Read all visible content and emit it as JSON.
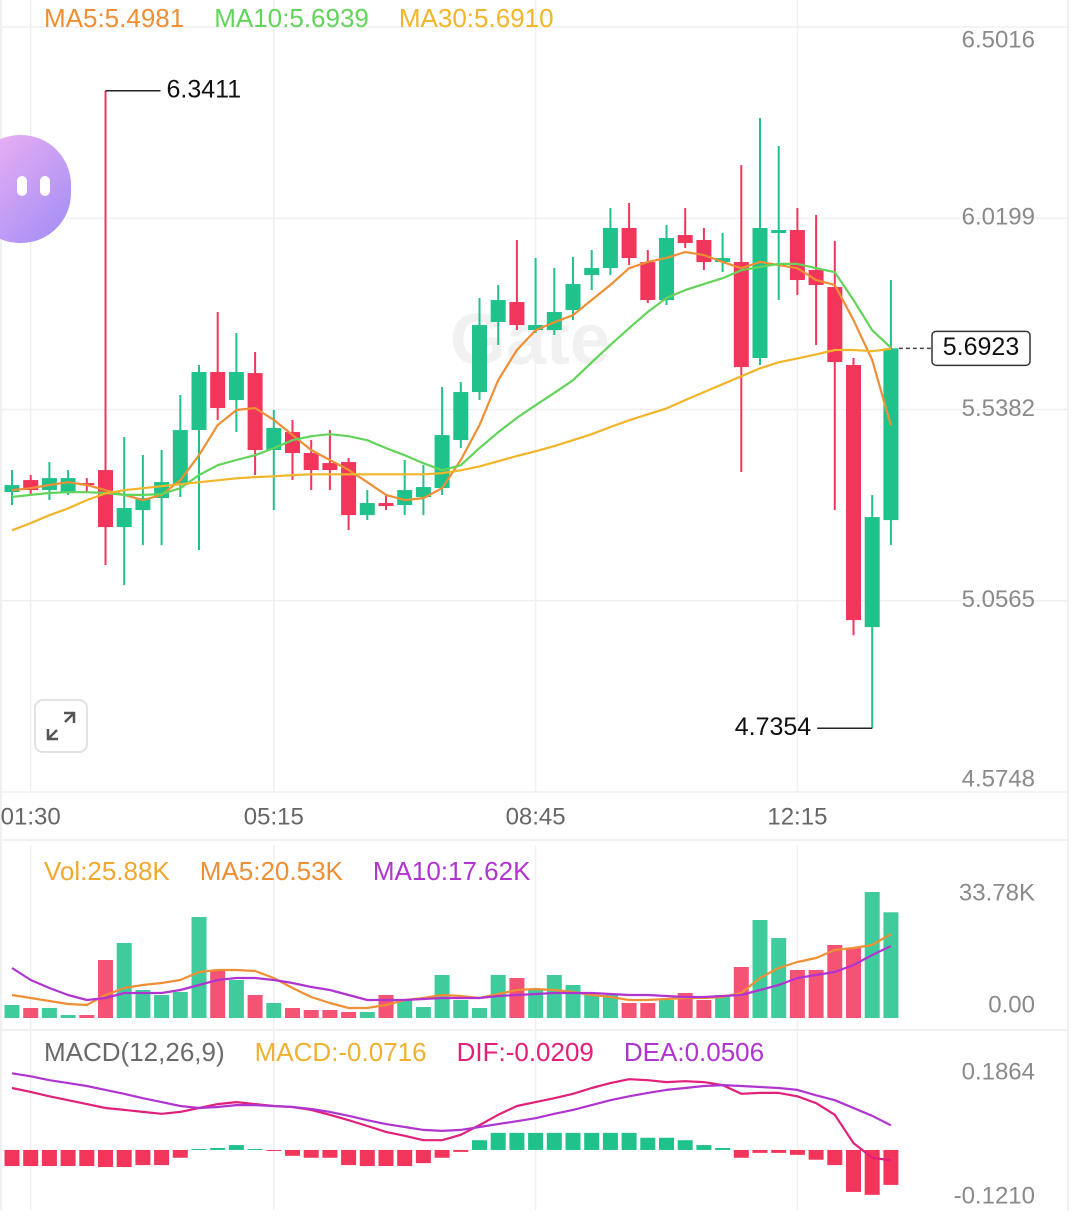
{
  "chart_data": [
    {
      "type": "candlestick",
      "watermark": "Gate",
      "categories": [
        null,
        "01:30",
        null,
        null,
        null,
        null,
        null,
        null,
        null,
        null,
        null,
        null,
        null,
        null,
        "05:15",
        null,
        null,
        null,
        null,
        null,
        null,
        null,
        null,
        null,
        null,
        null,
        null,
        null,
        "08:45",
        null,
        null,
        null,
        null,
        null,
        null,
        null,
        null,
        null,
        null,
        null,
        null,
        null,
        "12:15",
        null,
        null,
        null,
        null,
        null
      ],
      "open": [
        5.3303,
        5.3605,
        5.3353,
        5.3303,
        5.3529,
        5.3857,
        5.2421,
        5.2849,
        5.3152,
        5.3479,
        5.4864,
        5.6326,
        5.562,
        5.63,
        5.4361,
        5.4814,
        5.4285,
        5.4033,
        5.4058,
        5.2723,
        5.3026,
        5.2975,
        5.3177,
        5.3403,
        5.4613,
        5.5822,
        5.7585,
        5.8089,
        5.7383,
        5.7383,
        5.7887,
        5.8769,
        5.8945,
        5.9953,
        5.9096,
        5.8139,
        5.9776,
        5.9651,
        5.9096,
        5.9096,
        5.6678,
        5.9827,
        5.9902,
        5.8895,
        5.8466,
        5.6502,
        4.9902,
        5.2597
      ],
      "high": [
        5.3857,
        5.3731,
        5.4058,
        5.3857,
        5.3655,
        6.3411,
        5.4688,
        5.4235,
        5.4361,
        5.5746,
        5.6502,
        5.7837,
        5.7308,
        5.6829,
        5.5368,
        5.5116,
        5.4613,
        5.4864,
        5.4159,
        5.3353,
        5.3227,
        5.4109,
        5.3983,
        5.5948,
        5.6074,
        5.819,
        5.8517,
        5.9651,
        5.9197,
        5.8945,
        5.9222,
        5.9399,
        6.0456,
        6.0583,
        5.9399,
        6.0028,
        6.0456,
        5.9953,
        5.9827,
        6.154,
        6.2724,
        6.2018,
        6.0456,
        6.028,
        5.9625,
        5.6678,
        5.3227,
        5.8643
      ],
      "low": [
        5.2975,
        5.3227,
        5.3101,
        5.3227,
        5.3303,
        5.1464,
        5.096,
        5.1967,
        5.1967,
        5.3177,
        5.1842,
        5.5116,
        5.4814,
        5.3731,
        5.2849,
        5.3605,
        5.3353,
        5.3353,
        5.2345,
        5.2597,
        5.2849,
        5.2723,
        5.2723,
        5.3227,
        5.4411,
        5.562,
        5.7006,
        5.7383,
        5.7308,
        5.7257,
        5.7635,
        5.8391,
        5.8769,
        5.9021,
        5.8064,
        5.8013,
        5.9449,
        5.8895,
        5.8844,
        5.3807,
        5.6502,
        5.8139,
        5.8265,
        5.7006,
        5.2849,
        4.97,
        4.7354,
        5.1967
      ],
      "close": [
        5.3479,
        5.3353,
        5.3655,
        5.3655,
        5.3479,
        5.2421,
        5.29,
        5.3152,
        5.3555,
        5.4864,
        5.6326,
        5.5419,
        5.6326,
        5.4361,
        5.4915,
        5.4285,
        5.3857,
        5.3857,
        5.2723,
        5.3026,
        5.295,
        5.3353,
        5.3429,
        5.4738,
        5.5822,
        5.7509,
        5.8139,
        5.7509,
        5.7509,
        5.7837,
        5.8542,
        5.8945,
        5.9953,
        5.9197,
        5.8139,
        5.9701,
        5.9575,
        5.9096,
        5.9197,
        5.6451,
        5.9953,
        5.9902,
        5.8643,
        5.8517,
        5.6577,
        5.0078,
        5.2673,
        5.6923
      ],
      "up_color": "#1fc28b",
      "down_color": "#f2355b",
      "ylim": [
        4.5748,
        6.5016
      ],
      "yticks": [
        6.5016,
        6.0199,
        5.5382,
        5.0565,
        4.5748
      ],
      "grid": true,
      "series": [
        {
          "name": "MA5:5.4981",
          "color": "#ef8f35",
          "values": [
            5.335,
            5.34,
            5.348,
            5.355,
            5.348,
            5.335,
            5.323,
            5.31,
            5.323,
            5.36,
            5.423,
            5.499,
            5.537,
            5.542,
            5.512,
            5.474,
            5.436,
            5.411,
            5.386,
            5.355,
            5.323,
            5.31,
            5.315,
            5.34,
            5.411,
            5.499,
            5.612,
            5.688,
            5.738,
            5.758,
            5.776,
            5.814,
            5.852,
            5.894,
            5.91,
            5.92,
            5.935,
            5.927,
            5.91,
            5.894,
            5.91,
            5.902,
            5.894,
            5.864,
            5.852,
            5.763,
            5.663,
            5.4981
          ]
        },
        {
          "name": "MA10:5.6939",
          "color": "#62d45a",
          "values": [
            5.318,
            5.323,
            5.328,
            5.33,
            5.33,
            5.328,
            5.323,
            5.323,
            5.325,
            5.34,
            5.373,
            5.398,
            5.411,
            5.423,
            5.441,
            5.461,
            5.471,
            5.476,
            5.471,
            5.461,
            5.441,
            5.423,
            5.403,
            5.385,
            5.398,
            5.441,
            5.481,
            5.517,
            5.549,
            5.58,
            5.612,
            5.657,
            5.701,
            5.743,
            5.784,
            5.819,
            5.839,
            5.854,
            5.869,
            5.889,
            5.897,
            5.905,
            5.905,
            5.894,
            5.884,
            5.814,
            5.738,
            5.6939
          ]
        },
        {
          "name": "MA30:5.6910",
          "color": "#f2b52a",
          "values": [
            5.234,
            5.252,
            5.272,
            5.289,
            5.31,
            5.327,
            5.335,
            5.34,
            5.345,
            5.35,
            5.355,
            5.36,
            5.365,
            5.368,
            5.37,
            5.373,
            5.375,
            5.375,
            5.375,
            5.375,
            5.375,
            5.375,
            5.375,
            5.378,
            5.385,
            5.395,
            5.408,
            5.421,
            5.433,
            5.446,
            5.461,
            5.476,
            5.494,
            5.511,
            5.526,
            5.541,
            5.562,
            5.582,
            5.602,
            5.622,
            5.642,
            5.657,
            5.667,
            5.677,
            5.688,
            5.688,
            5.685,
            5.691
          ]
        }
      ]
    },
    {
      "type": "bar",
      "ylim": [
        0,
        33780
      ],
      "yticks": [
        {
          "value": 33780,
          "label": "33.78K"
        },
        {
          "value": 0,
          "label": "0.00"
        }
      ],
      "series": [
        {
          "name": "Vol:25.88K",
          "type": "bar",
          "color": "#f0a830",
          "values": [
            3180,
            2450,
            2450,
            730,
            730,
            14200,
            18360,
            6850,
            5630,
            6360,
            24720,
            11750,
            9300,
            5630,
            3670,
            2450,
            1960,
            1960,
            1470,
            1470,
            5630,
            4410,
            2690,
            10530,
            4410,
            2450,
            10530,
            9790,
            6850,
            10530,
            8080,
            5630,
            5630,
            3670,
            3670,
            4410,
            6120,
            4410,
            5630,
            12480,
            23990,
            19580,
            11750,
            11750,
            17870,
            17140,
            30840,
            25880
          ]
        },
        {
          "name": "MA5:20.53K",
          "color": "#ef8f35",
          "values": [
            5630,
            4900,
            4160,
            3430,
            3180,
            5630,
            7340,
            8080,
            8570,
            9300,
            11260,
            11750,
            11750,
            11510,
            9790,
            7340,
            5140,
            3670,
            2450,
            2450,
            3180,
            4410,
            4900,
            5630,
            5390,
            4900,
            5880,
            6850,
            7100,
            6850,
            6360,
            5630,
            5140,
            4410,
            4410,
            4650,
            4900,
            4900,
            5140,
            6120,
            9790,
            12240,
            13710,
            14690,
            16650,
            17140,
            17870,
            20530
          ]
        },
        {
          "name": "MA10:17.62K",
          "color": "#b035d0",
          "values": [
            12240,
            9300,
            7340,
            5630,
            4410,
            4900,
            6120,
            6120,
            6120,
            6850,
            8080,
            9300,
            9790,
            9790,
            9300,
            8570,
            7590,
            6850,
            5630,
            4410,
            4410,
            4410,
            4650,
            4900,
            4900,
            4900,
            5390,
            5630,
            5880,
            6120,
            6120,
            6120,
            5880,
            5630,
            5630,
            5390,
            5140,
            5140,
            5390,
            5630,
            6850,
            8080,
            9790,
            10530,
            11260,
            12970,
            15420,
            17620
          ]
        }
      ]
    },
    {
      "type": "bar",
      "title": "MACD(12,26,9)",
      "ylim": [
        -0.121,
        0.1864
      ],
      "yticks": [
        0.1864,
        {
          "value": -0.121,
          "label": "-0.1210"
        }
      ],
      "series": [
        {
          "name": "MACD:-0.0716",
          "type": "bar",
          "color": "#f0b030",
          "values": [
            -0.033,
            -0.033,
            -0.033,
            -0.033,
            -0.033,
            -0.035,
            -0.035,
            -0.031,
            -0.031,
            -0.016,
            0.002,
            0.004,
            0.01,
            0.002,
            -0.001,
            -0.012,
            -0.016,
            -0.016,
            -0.031,
            -0.033,
            -0.033,
            -0.033,
            -0.027,
            -0.016,
            -0.004,
            0.02,
            0.035,
            0.035,
            0.035,
            0.035,
            0.035,
            0.035,
            0.035,
            0.035,
            0.025,
            0.025,
            0.02,
            0.01,
            0.004,
            -0.016,
            -0.006,
            -0.006,
            -0.01,
            -0.02,
            -0.031,
            -0.086,
            -0.092,
            -0.0716
          ]
        },
        {
          "name": "DIF:-0.0209",
          "color": "#e0207a",
          "values": [
            0.127,
            0.119,
            0.11,
            0.102,
            0.094,
            0.086,
            0.082,
            0.078,
            0.074,
            0.078,
            0.086,
            0.094,
            0.098,
            0.094,
            0.09,
            0.088,
            0.082,
            0.072,
            0.061,
            0.049,
            0.037,
            0.029,
            0.02,
            0.02,
            0.031,
            0.051,
            0.072,
            0.09,
            0.098,
            0.106,
            0.115,
            0.127,
            0.137,
            0.145,
            0.143,
            0.139,
            0.141,
            0.139,
            0.133,
            0.115,
            0.117,
            0.117,
            0.11,
            0.096,
            0.072,
            0.014,
            -0.016,
            -0.0209
          ]
        },
        {
          "name": "DEA:0.0506",
          "color": "#b035d0",
          "values": [
            0.157,
            0.151,
            0.143,
            0.137,
            0.131,
            0.123,
            0.115,
            0.106,
            0.098,
            0.09,
            0.086,
            0.088,
            0.092,
            0.092,
            0.09,
            0.088,
            0.084,
            0.078,
            0.07,
            0.061,
            0.053,
            0.047,
            0.041,
            0.039,
            0.041,
            0.047,
            0.053,
            0.059,
            0.065,
            0.074,
            0.082,
            0.092,
            0.102,
            0.11,
            0.117,
            0.123,
            0.127,
            0.131,
            0.133,
            0.131,
            0.129,
            0.127,
            0.123,
            0.112,
            0.102,
            0.086,
            0.07,
            0.0506
          ]
        }
      ]
    }
  ]
}
